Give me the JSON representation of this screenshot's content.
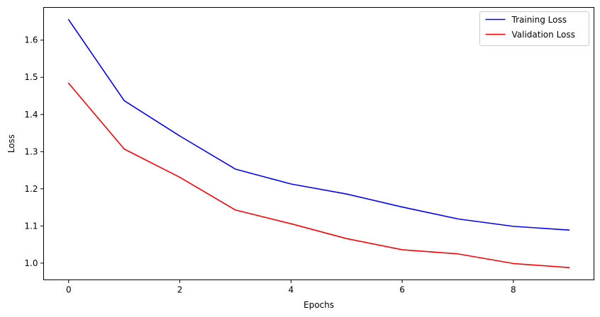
{
  "chart_data": {
    "type": "line",
    "xlabel": "Epochs",
    "ylabel": "Loss",
    "x": [
      0,
      1,
      2,
      3,
      4,
      5,
      6,
      7,
      8,
      9
    ],
    "xlim": [
      -0.45,
      9.45
    ],
    "ylim": [
      0.955,
      1.688
    ],
    "xticks": [
      0,
      2,
      4,
      6,
      8
    ],
    "yticks": [
      1.0,
      1.1,
      1.2,
      1.3,
      1.4,
      1.5,
      1.6
    ],
    "grid": false,
    "legend_position": "top-right",
    "series": [
      {
        "name": "Training Loss",
        "color": "#0000ff",
        "values": [
          1.655,
          1.437,
          1.342,
          1.253,
          1.213,
          1.186,
          1.151,
          1.119,
          1.099,
          1.089
        ]
      },
      {
        "name": "Validation Loss",
        "color": "#ff0000",
        "values": [
          1.484,
          1.307,
          1.231,
          1.143,
          1.106,
          1.066,
          1.036,
          1.025,
          0.999,
          0.988
        ]
      }
    ]
  }
}
